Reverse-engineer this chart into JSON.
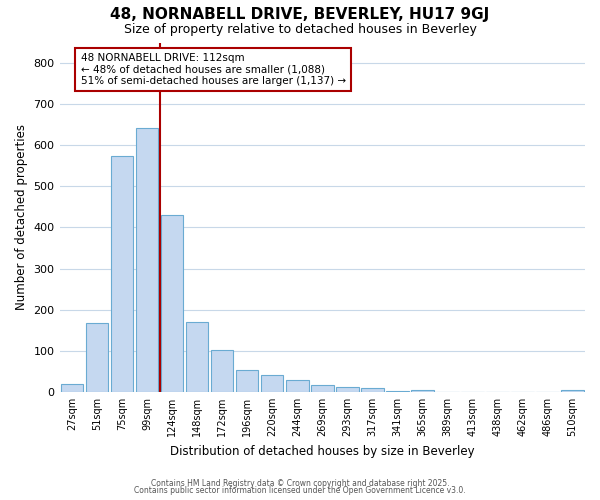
{
  "title": "48, NORNABELL DRIVE, BEVERLEY, HU17 9GJ",
  "subtitle": "Size of property relative to detached houses in Beverley",
  "xlabel": "Distribution of detached houses by size in Beverley",
  "ylabel": "Number of detached properties",
  "bar_labels": [
    "27sqm",
    "51sqm",
    "75sqm",
    "99sqm",
    "124sqm",
    "148sqm",
    "172sqm",
    "196sqm",
    "220sqm",
    "244sqm",
    "269sqm",
    "293sqm",
    "317sqm",
    "341sqm",
    "365sqm",
    "389sqm",
    "413sqm",
    "438sqm",
    "462sqm",
    "486sqm",
    "510sqm"
  ],
  "bar_values": [
    20,
    167,
    575,
    643,
    430,
    170,
    103,
    53,
    40,
    30,
    16,
    13,
    9,
    3,
    4,
    1,
    0,
    0,
    0,
    0,
    5
  ],
  "bar_color": "#c5d8f0",
  "bar_edgecolor": "#6aabd2",
  "bg_color": "#ffffff",
  "grid_color": "#c8d8e8",
  "vline_x": 3.5,
  "vline_color": "#aa0000",
  "annotation_title": "48 NORNABELL DRIVE: 112sqm",
  "annotation_line2": "← 48% of detached houses are smaller (1,088)",
  "annotation_line3": "51% of semi-detached houses are larger (1,137) →",
  "annotation_box_edgecolor": "#aa0000",
  "ylim": [
    0,
    850
  ],
  "yticks": [
    0,
    100,
    200,
    300,
    400,
    500,
    600,
    700,
    800
  ],
  "footer_line1": "Contains HM Land Registry data © Crown copyright and database right 2025.",
  "footer_line2": "Contains public sector information licensed under the Open Government Licence v3.0."
}
